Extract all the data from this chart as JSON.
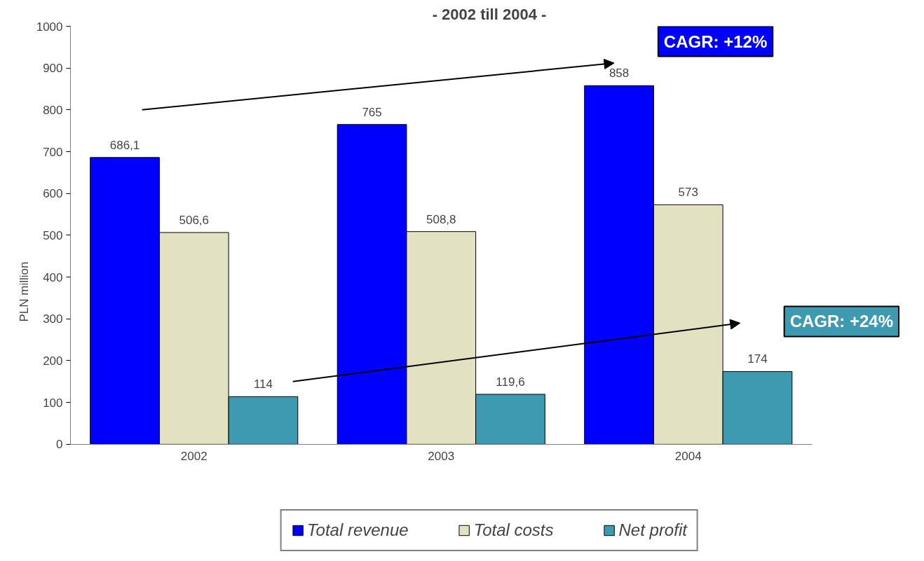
{
  "chart_data": {
    "type": "bar",
    "title": "- 2002 till 2004 -",
    "ylabel": "PLN million",
    "categories": [
      "2002",
      "2003",
      "2004"
    ],
    "series": [
      {
        "name": "Total revenue",
        "color": "#0000ff",
        "values": [
          686.1,
          765,
          858
        ],
        "value_labels": [
          "686,1",
          "765",
          "858"
        ]
      },
      {
        "name": "Total costs",
        "color": "#e2e2c2",
        "values": [
          506.6,
          508.8,
          573
        ],
        "value_labels": [
          "506,6",
          "508,8",
          "573"
        ]
      },
      {
        "name": "Net profit",
        "color": "#3e9ab0",
        "values": [
          114,
          119.6,
          174
        ],
        "value_labels": [
          "114",
          "119,6",
          "174"
        ]
      }
    ],
    "annotations": [
      "CAGR: +12%",
      "CAGR: +24%"
    ],
    "ylim": [
      0,
      1000
    ],
    "yticks": [
      0,
      100,
      200,
      300,
      400,
      500,
      600,
      700,
      800,
      900,
      1000
    ],
    "grid": false,
    "legend": "bottom"
  }
}
